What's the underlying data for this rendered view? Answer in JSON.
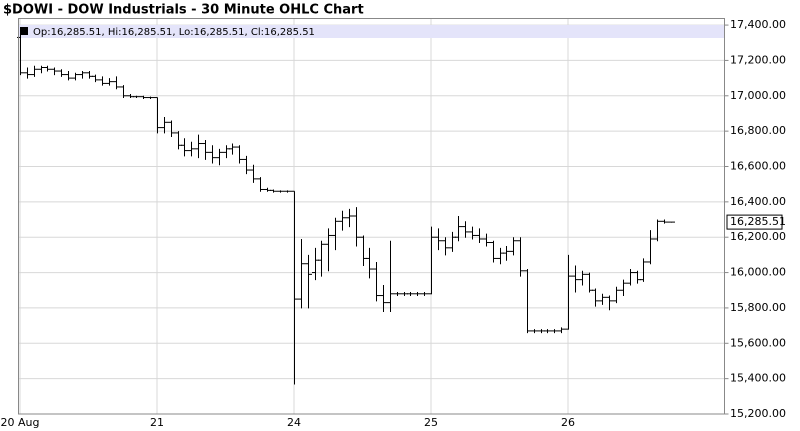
{
  "chart_data": {
    "type": "ohlc",
    "title": "$DOWI - DOW Industrials - 30 Minute OHLC Chart",
    "info_label": "Op:16,285.51, Hi:16,285.51, Lo:16,285.51, Cl:16,285.51",
    "last_price": {
      "value": 16285.51,
      "label": "16,285.51"
    },
    "color": "#000000",
    "grid": true,
    "categories": [
      "20 Aug",
      null,
      null,
      null,
      null,
      null,
      null,
      null,
      null,
      null,
      null,
      null,
      null,
      null,
      null,
      null,
      null,
      null,
      null,
      null,
      "21",
      null,
      null,
      null,
      null,
      null,
      null,
      null,
      null,
      null,
      null,
      null,
      null,
      null,
      null,
      null,
      null,
      null,
      null,
      null,
      "24",
      null,
      null,
      null,
      null,
      null,
      null,
      null,
      null,
      null,
      null,
      null,
      null,
      null,
      null,
      null,
      null,
      null,
      null,
      null,
      "25",
      null,
      null,
      null,
      null,
      null,
      null,
      null,
      null,
      null,
      null,
      null,
      null,
      null,
      null,
      null,
      null,
      null,
      null,
      null,
      "26",
      null,
      null,
      null,
      null,
      null,
      null,
      null,
      null,
      null,
      null,
      null,
      null,
      null,
      null,
      null
    ],
    "open": [
      17330,
      17130,
      17120,
      17150,
      17160,
      17150,
      17140,
      17120,
      17100,
      17120,
      17130,
      17110,
      17090,
      17070,
      17080,
      17050,
      17000,
      16995,
      16995,
      16990,
      16990,
      16820,
      16850,
      16790,
      16720,
      16690,
      16700,
      16730,
      16680,
      16650,
      16680,
      16700,
      16710,
      16640,
      16580,
      16530,
      16470,
      16465,
      16460,
      16460,
      16460,
      15850,
      16050,
      16000,
      16070,
      16160,
      16210,
      16290,
      16310,
      16320,
      16200,
      16080,
      16020,
      15870,
      15830,
      15880,
      15880,
      15880,
      15880,
      15880,
      15880,
      16200,
      16180,
      16140,
      16200,
      16260,
      16230,
      16210,
      16190,
      16170,
      16080,
      16110,
      16120,
      16180,
      16010,
      15670,
      15670,
      15670,
      15670,
      15670,
      15680,
      15980,
      15960,
      15990,
      15900,
      15840,
      15860,
      15840,
      15900,
      15940,
      16000,
      15960,
      16060,
      16190,
      16290,
      16285.51
    ],
    "high": [
      17370,
      17160,
      17170,
      17170,
      17170,
      17160,
      17150,
      17140,
      17130,
      17140,
      17140,
      17120,
      17110,
      17100,
      17110,
      17060,
      17010,
      17000,
      17000,
      16995,
      16990,
      16880,
      16860,
      16800,
      16760,
      16740,
      16780,
      16750,
      16720,
      16700,
      16720,
      16730,
      16720,
      16660,
      16610,
      16540,
      16480,
      16470,
      16465,
      16465,
      16460,
      16190,
      16100,
      16140,
      16180,
      16250,
      16310,
      16350,
      16360,
      16370,
      16210,
      16140,
      16060,
      15930,
      16180,
      15890,
      15890,
      15890,
      15890,
      15890,
      16260,
      16250,
      16200,
      16230,
      16320,
      16290,
      16260,
      16250,
      16220,
      16180,
      16140,
      16150,
      16200,
      16200,
      16020,
      15680,
      15680,
      15680,
      15680,
      15690,
      16100,
      16040,
      16010,
      16000,
      15910,
      15880,
      15870,
      15920,
      15960,
      16020,
      16010,
      16080,
      16240,
      16300,
      16300,
      16285.51
    ],
    "low": [
      17120,
      17100,
      17110,
      17130,
      17140,
      17120,
      17110,
      17090,
      17090,
      17100,
      17100,
      17080,
      17060,
      17060,
      17040,
      16990,
      16990,
      16990,
      16985,
      16985,
      16790,
      16790,
      16770,
      16700,
      16660,
      16660,
      16650,
      16640,
      16620,
      16610,
      16650,
      16670,
      16620,
      16560,
      16510,
      16460,
      16460,
      16455,
      16455,
      16455,
      15370,
      15800,
      15800,
      15960,
      15980,
      16010,
      16130,
      16240,
      16260,
      16150,
      16040,
      15970,
      15840,
      15780,
      15780,
      15870,
      15870,
      15870,
      15870,
      15870,
      15880,
      16130,
      16100,
      16120,
      16180,
      16200,
      16190,
      16170,
      16150,
      16060,
      16050,
      16070,
      16100,
      15980,
      15660,
      15660,
      15660,
      15660,
      15660,
      15660,
      15680,
      15890,
      15930,
      15890,
      15810,
      15820,
      15790,
      15830,
      15870,
      15930,
      15940,
      15950,
      16050,
      16180,
      16280,
      16285.51
    ],
    "close": [
      17130,
      17120,
      17150,
      17160,
      17150,
      17140,
      17120,
      17100,
      17120,
      17130,
      17110,
      17090,
      17070,
      17080,
      17050,
      17000,
      16995,
      16995,
      16990,
      16990,
      16820,
      16850,
      16790,
      16720,
      16690,
      16700,
      16730,
      16680,
      16650,
      16680,
      16700,
      16710,
      16640,
      16580,
      16530,
      16470,
      16465,
      16460,
      16460,
      16460,
      15850,
      16050,
      15990,
      16070,
      16160,
      16210,
      16290,
      16310,
      16320,
      16200,
      16080,
      16020,
      15870,
      15830,
      15880,
      15880,
      15880,
      15880,
      15880,
      15880,
      16200,
      16180,
      16140,
      16200,
      16260,
      16230,
      16210,
      16190,
      16170,
      16080,
      16110,
      16120,
      16180,
      16010,
      15670,
      15670,
      15670,
      15670,
      15670,
      15680,
      15980,
      15960,
      15990,
      15900,
      15840,
      15860,
      15840,
      15900,
      15940,
      16000,
      15960,
      16060,
      16190,
      16290,
      16285.51,
      16285.51
    ],
    "ylim": [
      15200,
      17440
    ],
    "yticks": [
      {
        "value": 15200,
        "label": "15,200.00"
      },
      {
        "value": 15400,
        "label": "15,400.00"
      },
      {
        "value": 15600,
        "label": "15,600.00"
      },
      {
        "value": 15800,
        "label": "15,800.00"
      },
      {
        "value": 16000,
        "label": "16,000.00"
      },
      {
        "value": 16200,
        "label": "16,200.00"
      },
      {
        "value": 16400,
        "label": "16,400.00"
      },
      {
        "value": 16600,
        "label": "16,600.00"
      },
      {
        "value": 16800,
        "label": "16,800.00"
      },
      {
        "value": 17000,
        "label": "17,000.00"
      },
      {
        "value": 17200,
        "label": "17,200.00"
      },
      {
        "value": 17400,
        "label": "17,400.00"
      }
    ]
  }
}
